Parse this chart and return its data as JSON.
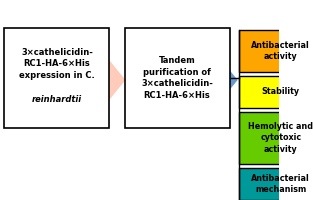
{
  "bg_color": "#ffffff",
  "box1_text": "3×cathelicidin-\nRC1-HA-6×His\nexpression in C.\nreinhardtii",
  "box2_text": "Tandem\npurification of\n3×cathelicidin-\nRC1-HA-6×His",
  "right_boxes": [
    {
      "text": "Antibacterial\nactivity",
      "color": "#FFA500"
    },
    {
      "text": "Stability",
      "color": "#FFFF00"
    },
    {
      "text": "Hemolytic and\ncytotoxic\nactivity",
      "color": "#66CC00"
    },
    {
      "text": "Antibacterial\nmechanism",
      "color": "#009999"
    }
  ],
  "arrow1_color": "#FFCCBB",
  "arrow2_color": "#6699CC",
  "text_color": "#000000",
  "font_size": 6.0,
  "title_font_size": 6.5
}
